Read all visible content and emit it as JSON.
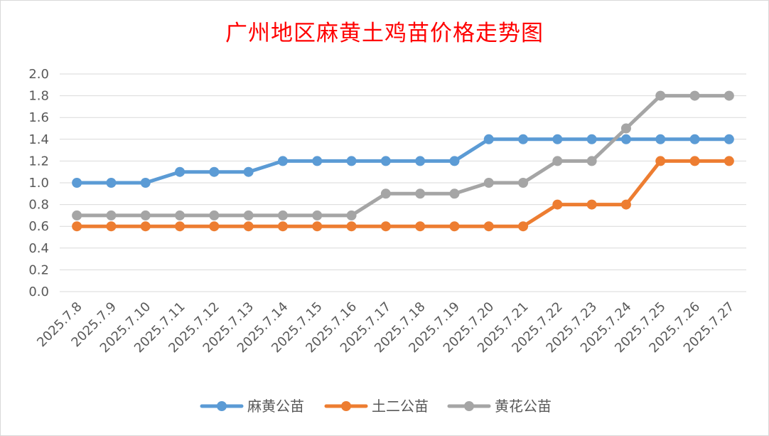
{
  "chart_data": {
    "type": "line",
    "title": "广州地区麻黄土鸡苗价格走势图",
    "xlabel": "",
    "ylabel": "",
    "categories": [
      "2025.7.8",
      "2025.7.9",
      "2025.7.10",
      "2025.7.11",
      "2025.7.12",
      "2025.7.13",
      "2025.7.14",
      "2025.7.15",
      "2025.7.16",
      "2025.7.17",
      "2025.7.18",
      "2025.7.19",
      "2025.7.20",
      "2025.7.21",
      "2025.7.22",
      "2025.7.23",
      "2025.7.24",
      "2025.7.25",
      "2025.7.26",
      "2025.7.27"
    ],
    "ylim": [
      0,
      2.0
    ],
    "yticks": [
      "0.0",
      "0.2",
      "0.4",
      "0.6",
      "0.8",
      "1.0",
      "1.2",
      "1.4",
      "1.6",
      "1.8",
      "2.0"
    ],
    "grid": true,
    "legend_position": "bottom",
    "series": [
      {
        "name": "麻黄公苗",
        "color": "#5b9bd5",
        "values": [
          1.0,
          1.0,
          1.0,
          1.1,
          1.1,
          1.1,
          1.2,
          1.2,
          1.2,
          1.2,
          1.2,
          1.2,
          1.4,
          1.4,
          1.4,
          1.4,
          1.4,
          1.4,
          1.4,
          1.4
        ]
      },
      {
        "name": "土二公苗",
        "color": "#ed7d31",
        "values": [
          0.6,
          0.6,
          0.6,
          0.6,
          0.6,
          0.6,
          0.6,
          0.6,
          0.6,
          0.6,
          0.6,
          0.6,
          0.6,
          0.6,
          0.8,
          0.8,
          0.8,
          1.2,
          1.2,
          1.2
        ]
      },
      {
        "name": "黄花公苗",
        "color": "#a5a5a5",
        "values": [
          0.7,
          0.7,
          0.7,
          0.7,
          0.7,
          0.7,
          0.7,
          0.7,
          0.7,
          0.9,
          0.9,
          0.9,
          1.0,
          1.0,
          1.2,
          1.2,
          1.5,
          1.8,
          1.8,
          1.8
        ]
      }
    ]
  }
}
